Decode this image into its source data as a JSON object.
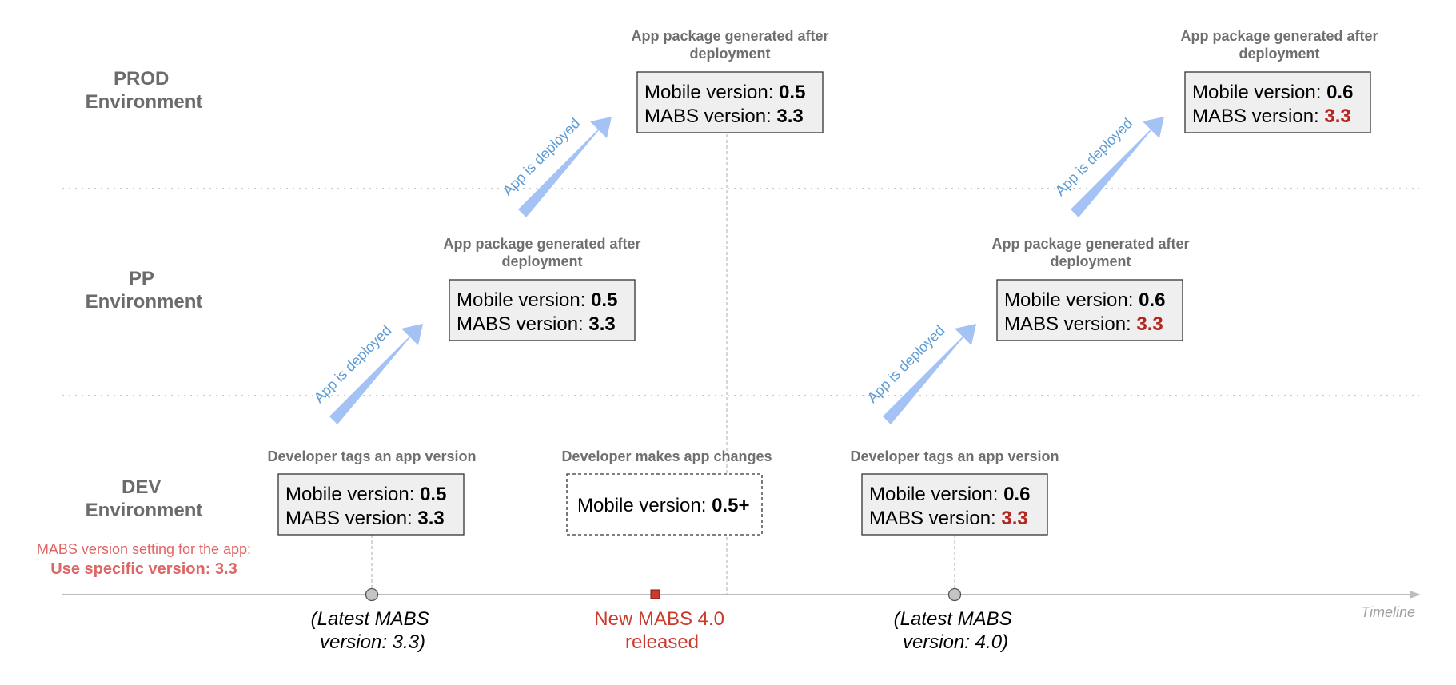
{
  "environments": {
    "prod": {
      "line1": "PROD",
      "line2": "Environment"
    },
    "pp": {
      "line1": "PP",
      "line2": "Environment"
    },
    "dev": {
      "line1": "DEV",
      "line2": "Environment"
    }
  },
  "captions": {
    "generated_line1": "App package generated after",
    "generated_line2": "deployment",
    "dev_tag": "Developer tags an app version",
    "dev_changes": "Developer makes app changes"
  },
  "arrow_label": "App is deployed",
  "version_labels": {
    "mobile": "Mobile version: ",
    "mabs": "MABS version: "
  },
  "boxes": {
    "dev_1": {
      "mobile": "0.5",
      "mabs": "3.3"
    },
    "pp_1": {
      "mobile": "0.5",
      "mabs": "3.3"
    },
    "prod_1": {
      "mobile": "0.5",
      "mabs": "3.3"
    },
    "dev_changes": {
      "mobile": "0.5+"
    },
    "dev_2": {
      "mobile": "0.6",
      "mabs": "3.3"
    },
    "pp_2": {
      "mobile": "0.6",
      "mabs": "3.3"
    },
    "prod_2": {
      "mobile": "0.6",
      "mabs": "3.3"
    }
  },
  "setting": {
    "line1": "MABS version setting for the app:",
    "line2": "Use specific version: 3.3"
  },
  "timeline": {
    "label": "Timeline",
    "event1": {
      "line1": "(Latest MABS",
      "line2": "version: 3.3)"
    },
    "release": {
      "line1": "New MABS 4.0",
      "line2": "released"
    },
    "event2": {
      "line1": "(Latest MABS",
      "line2": "version: 4.0)"
    }
  },
  "colors": {
    "arrow": "#a4c2f4",
    "highlight_red": "#b3261e",
    "release_marker": "#cc3a2c",
    "box_fill": "#efefef"
  }
}
